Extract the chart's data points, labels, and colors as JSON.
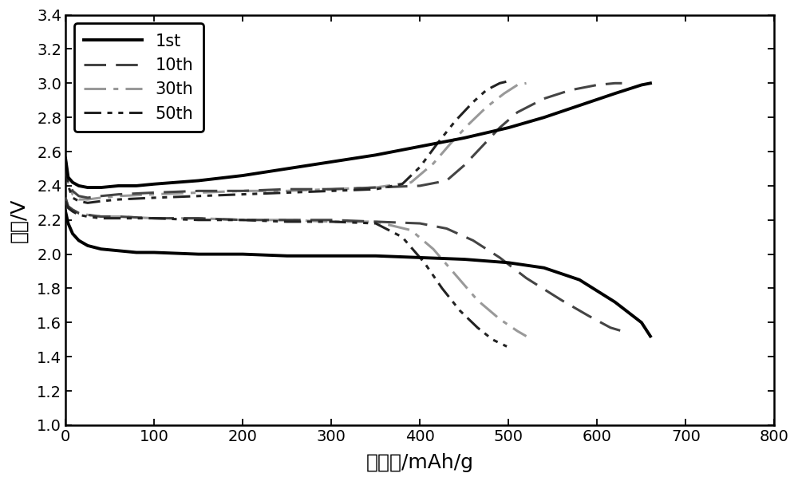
{
  "xlabel": "比容量/mAh/g",
  "ylabel": "电压/V",
  "xlim": [
    0,
    800
  ],
  "ylim": [
    1.0,
    3.4
  ],
  "xticks": [
    0,
    100,
    200,
    300,
    400,
    500,
    600,
    700,
    800
  ],
  "yticks": [
    1.0,
    1.2,
    1.4,
    1.6,
    1.8,
    2.0,
    2.2,
    2.4,
    2.6,
    2.8,
    3.0,
    3.2,
    3.4
  ],
  "curves": {
    "1st_charge": {
      "x": [
        0,
        3,
        8,
        15,
        25,
        40,
        60,
        80,
        100,
        150,
        200,
        250,
        300,
        350,
        400,
        450,
        500,
        540,
        580,
        620,
        650,
        660
      ],
      "y": [
        2.56,
        2.45,
        2.42,
        2.4,
        2.39,
        2.39,
        2.4,
        2.4,
        2.41,
        2.43,
        2.46,
        2.5,
        2.54,
        2.58,
        2.63,
        2.68,
        2.74,
        2.8,
        2.87,
        2.94,
        2.99,
        3.0
      ]
    },
    "1st_discharge": {
      "x": [
        0,
        3,
        8,
        15,
        25,
        40,
        60,
        80,
        100,
        150,
        200,
        250,
        300,
        350,
        400,
        450,
        500,
        540,
        580,
        620,
        650,
        660
      ],
      "y": [
        2.25,
        2.18,
        2.12,
        2.08,
        2.05,
        2.03,
        2.02,
        2.01,
        2.01,
        2.0,
        2.0,
        1.99,
        1.99,
        1.99,
        1.98,
        1.97,
        1.95,
        1.92,
        1.85,
        1.72,
        1.6,
        1.52
      ]
    },
    "10th_charge": {
      "x": [
        0,
        3,
        8,
        15,
        25,
        40,
        60,
        100,
        150,
        200,
        250,
        300,
        350,
        400,
        430,
        450,
        470,
        490,
        510,
        540,
        570,
        600,
        620,
        628
      ],
      "y": [
        2.56,
        2.44,
        2.37,
        2.34,
        2.33,
        2.34,
        2.35,
        2.36,
        2.37,
        2.37,
        2.38,
        2.38,
        2.39,
        2.4,
        2.43,
        2.52,
        2.63,
        2.74,
        2.83,
        2.91,
        2.96,
        2.99,
        3.0,
        3.0
      ]
    },
    "10th_discharge": {
      "x": [
        0,
        3,
        8,
        15,
        25,
        40,
        60,
        100,
        150,
        200,
        250,
        300,
        350,
        400,
        430,
        460,
        490,
        520,
        560,
        590,
        615,
        628
      ],
      "y": [
        2.33,
        2.28,
        2.26,
        2.24,
        2.23,
        2.22,
        2.22,
        2.21,
        2.21,
        2.2,
        2.2,
        2.2,
        2.19,
        2.18,
        2.15,
        2.08,
        1.98,
        1.86,
        1.73,
        1.64,
        1.57,
        1.55
      ]
    },
    "30th_charge": {
      "x": [
        0,
        3,
        8,
        15,
        25,
        40,
        60,
        100,
        150,
        200,
        250,
        300,
        350,
        390,
        415,
        435,
        455,
        475,
        495,
        510,
        520
      ],
      "y": [
        2.54,
        2.42,
        2.35,
        2.32,
        2.32,
        2.33,
        2.34,
        2.35,
        2.36,
        2.37,
        2.37,
        2.38,
        2.39,
        2.42,
        2.53,
        2.65,
        2.76,
        2.86,
        2.94,
        2.99,
        3.0
      ]
    },
    "30th_discharge": {
      "x": [
        0,
        3,
        8,
        15,
        25,
        40,
        60,
        100,
        150,
        200,
        250,
        300,
        350,
        390,
        415,
        440,
        465,
        490,
        510,
        520
      ],
      "y": [
        2.33,
        2.28,
        2.26,
        2.24,
        2.23,
        2.22,
        2.22,
        2.21,
        2.21,
        2.2,
        2.2,
        2.19,
        2.19,
        2.14,
        2.03,
        1.88,
        1.73,
        1.62,
        1.55,
        1.52
      ]
    },
    "50th_charge": {
      "x": [
        0,
        3,
        8,
        15,
        25,
        40,
        60,
        100,
        150,
        200,
        250,
        300,
        350,
        380,
        400,
        420,
        440,
        460,
        475,
        490,
        498
      ],
      "y": [
        2.52,
        2.4,
        2.33,
        2.31,
        2.3,
        2.31,
        2.32,
        2.33,
        2.34,
        2.35,
        2.36,
        2.37,
        2.38,
        2.41,
        2.51,
        2.65,
        2.78,
        2.89,
        2.96,
        3.0,
        3.01
      ]
    },
    "50th_discharge": {
      "x": [
        0,
        3,
        8,
        15,
        25,
        40,
        60,
        100,
        150,
        200,
        250,
        300,
        350,
        380,
        405,
        425,
        445,
        465,
        482,
        498
      ],
      "y": [
        2.31,
        2.27,
        2.25,
        2.23,
        2.22,
        2.21,
        2.21,
        2.21,
        2.2,
        2.2,
        2.19,
        2.19,
        2.18,
        2.1,
        1.95,
        1.8,
        1.67,
        1.57,
        1.5,
        1.46
      ]
    }
  }
}
